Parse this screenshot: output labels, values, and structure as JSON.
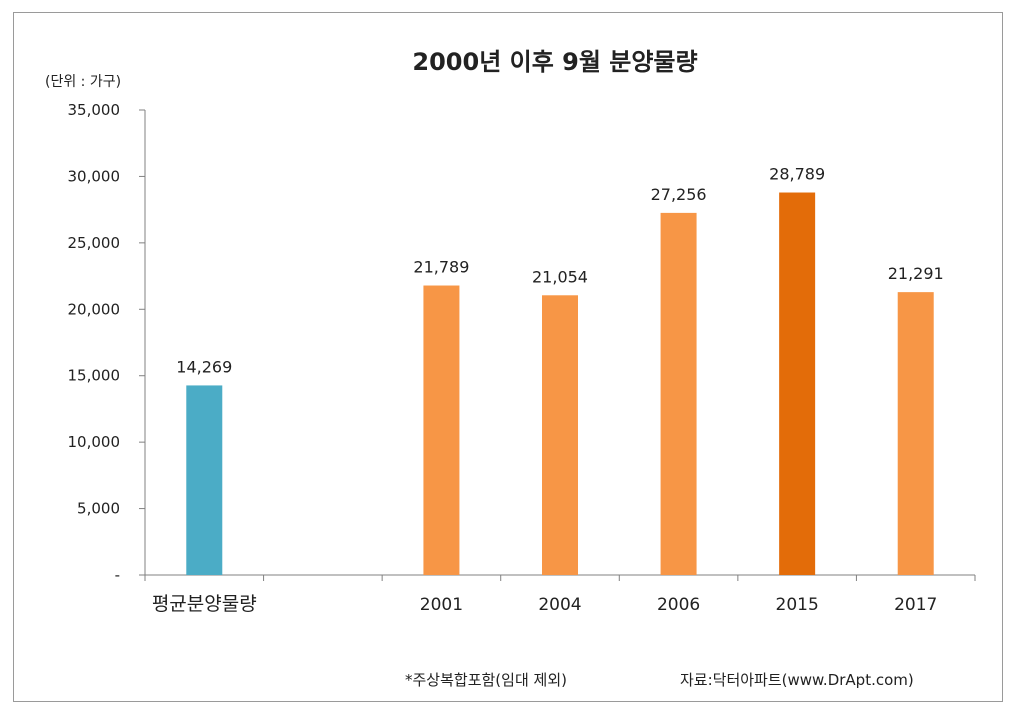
{
  "chart_data": {
    "type": "bar",
    "title": "2000년 이후 9월 분양물량",
    "unit_label": "(단위 : 가구)",
    "categories": [
      "평균분양물량",
      "",
      "2001",
      "2004",
      "2006",
      "2015",
      "2017"
    ],
    "values": [
      14269,
      null,
      21789,
      21054,
      27256,
      28789,
      21291
    ],
    "data_labels": [
      "14,269",
      "",
      "21,789",
      "21,054",
      "27,256",
      "28,789",
      "21,291"
    ],
    "bar_colors": [
      "#4bacc6",
      null,
      "#f79646",
      "#f79646",
      "#f79646",
      "#e36c09",
      "#f79646"
    ],
    "yticks": [
      0,
      5000,
      10000,
      15000,
      20000,
      25000,
      30000,
      35000
    ],
    "ytick_labels": [
      "-",
      "5,000",
      "10,000",
      "15,000",
      "20,000",
      "25,000",
      "30,000",
      "35,000"
    ],
    "ylim": [
      0,
      35000
    ],
    "xlabel": "",
    "ylabel": "",
    "grid": false
  },
  "footer": {
    "note": "*주상복합포함(임대 제외)",
    "source": "자료:닥터아파트(www.DrApt.com)"
  }
}
